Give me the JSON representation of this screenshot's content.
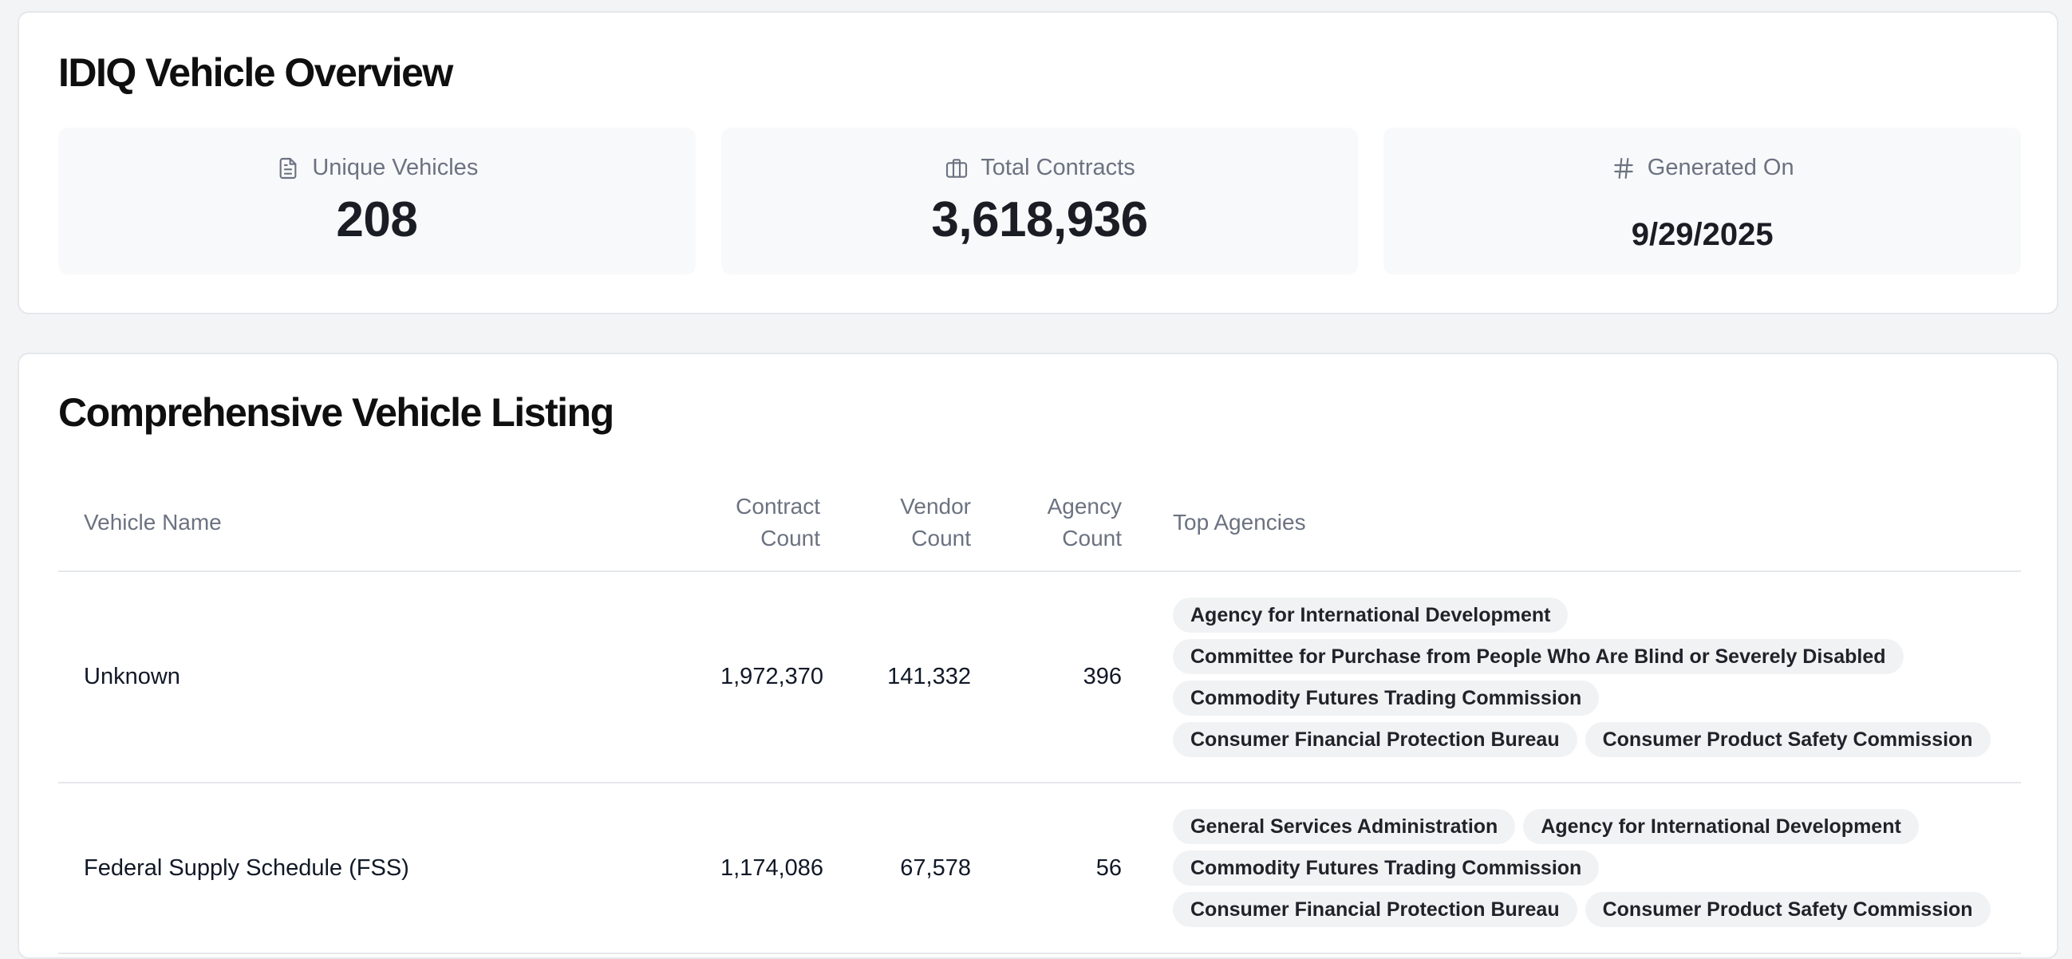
{
  "overview": {
    "title": "IDIQ Vehicle Overview",
    "stats": [
      {
        "label": "Unique Vehicles",
        "value": "208",
        "icon": "document-icon"
      },
      {
        "label": "Total Contracts",
        "value": "3,618,936",
        "icon": "briefcase-icon"
      },
      {
        "label": "Generated On",
        "value": "9/29/2025",
        "icon": "hash-icon"
      }
    ]
  },
  "listing": {
    "title": "Comprehensive Vehicle Listing",
    "columns": {
      "vehicle_name": "Vehicle Name",
      "contract_count": [
        "Contract",
        "Count"
      ],
      "vendor_count": [
        "Vendor",
        "Count"
      ],
      "agency_count": [
        "Agency",
        "Count"
      ],
      "top_agencies": "Top Agencies"
    },
    "rows": [
      {
        "name": "Unknown",
        "contract_count": "1,972,370",
        "vendor_count": "141,332",
        "agency_count": "396",
        "top_agencies": [
          "Agency for International Development",
          "Committee for Purchase from People Who Are Blind or Severely Disabled",
          "Commodity Futures Trading Commission",
          "Consumer Financial Protection Bureau",
          "Consumer Product Safety Commission"
        ]
      },
      {
        "name": "Federal Supply Schedule (FSS)",
        "contract_count": "1,174,086",
        "vendor_count": "67,578",
        "agency_count": "56",
        "top_agencies": [
          "General Services Administration",
          "Agency for International Development",
          "Commodity Futures Trading Commission",
          "Consumer Financial Protection Bureau",
          "Consumer Product Safety Commission"
        ]
      }
    ]
  },
  "colors": {
    "page_background": "#f3f4f6",
    "card_background": "#ffffff",
    "stat_background": "#f8f9fb",
    "muted_text": "#6b7280",
    "tag_background": "#f1f2f4"
  }
}
